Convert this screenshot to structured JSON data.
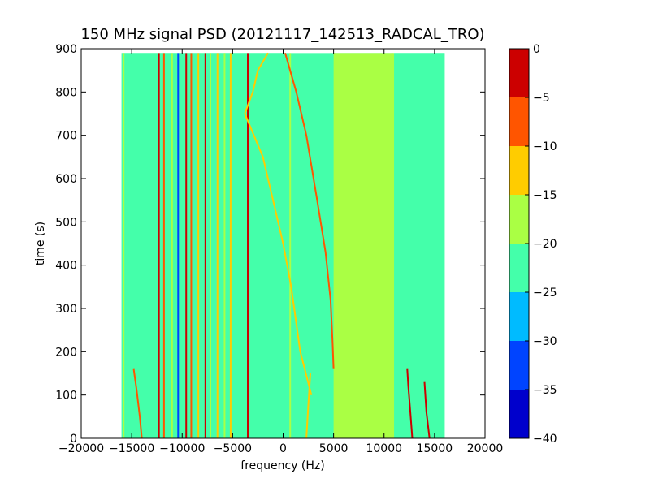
{
  "chart_data": {
    "type": "heatmap",
    "title": "150 MHz signal PSD (20121117_142513_RADCAL_TRO)",
    "xlabel": "frequency (Hz)",
    "ylabel": "time (s)",
    "xlim": [
      -20000,
      20000
    ],
    "ylim": [
      0,
      900
    ],
    "data_extent": {
      "x": [
        -16000,
        16000
      ],
      "y": [
        0,
        890
      ]
    },
    "xticks": [
      -20000,
      -15000,
      -10000,
      -5000,
      0,
      5000,
      10000,
      15000,
      20000
    ],
    "xtick_labels": [
      "−20000",
      "−15000",
      "−10000",
      "−5000",
      "0",
      "5000",
      "10000",
      "15000",
      "20000"
    ],
    "yticks": [
      0,
      100,
      200,
      300,
      400,
      500,
      600,
      700,
      800,
      900
    ],
    "ytick_labels": [
      "0",
      "100",
      "200",
      "300",
      "400",
      "500",
      "600",
      "700",
      "800",
      "900"
    ],
    "colorbar": {
      "levels": [
        -40,
        -35,
        -30,
        -25,
        -20,
        -15,
        -10,
        -5,
        0
      ],
      "tick_labels": [
        "−40",
        "−35",
        "−30",
        "−25",
        "−20",
        "−15",
        "−10",
        "−5",
        "0"
      ],
      "colors": [
        "#0000cc",
        "#0044ff",
        "#00bbff",
        "#44ffaa",
        "#aaff44",
        "#ffcc00",
        "#ff5500",
        "#cc0000"
      ]
    },
    "background_level": -22.5,
    "regions": [
      {
        "x": [
          -16000,
          0
        ],
        "y": [
          0,
          890
        ],
        "level": -22.5
      },
      {
        "x": [
          5000,
          11000
        ],
        "y": [
          0,
          890
        ],
        "level": -17.5
      },
      {
        "x": [
          11000,
          16000
        ],
        "y": [
          0,
          890
        ],
        "level": -20
      }
    ],
    "vertical_lines": [
      {
        "x": -15800,
        "level": -17.5
      },
      {
        "x": -12300,
        "level": -2.5
      },
      {
        "x": -11800,
        "level": -7.5
      },
      {
        "x": -11000,
        "level": -17.5
      },
      {
        "x": -10400,
        "level": -32.5
      },
      {
        "x": -9600,
        "level": -2.5
      },
      {
        "x": -9100,
        "level": -7.5
      },
      {
        "x": -8400,
        "level": -12.5
      },
      {
        "x": -7700,
        "level": -2.5
      },
      {
        "x": -7200,
        "level": -17.5
      },
      {
        "x": -6500,
        "level": -12.5
      },
      {
        "x": -5800,
        "level": -17.5
      },
      {
        "x": -5200,
        "level": -12.5
      },
      {
        "x": -3500,
        "level": -2.5
      },
      {
        "x": 700,
        "level": -17.5
      },
      {
        "x": 5200,
        "level": -17.5
      },
      {
        "x": 10800,
        "level": -17.5
      }
    ],
    "tracks": [
      {
        "name": "",
        "level": -12.5,
        "x": [
          -1500,
          -2500,
          -3000,
          -3800,
          -2000,
          -1000,
          0,
          800,
          1700,
          2800
        ],
        "y": [
          890,
          850,
          800,
          750,
          650,
          550,
          450,
          350,
          200,
          100
        ]
      },
      {
        "name": "",
        "level": -7.5,
        "x": [
          200,
          1300,
          2300,
          3300,
          4200,
          4700,
          4900,
          5000
        ],
        "y": [
          890,
          800,
          700,
          560,
          430,
          320,
          220,
          160
        ]
      },
      {
        "name": "",
        "level": -7.5,
        "x": [
          -14000,
          -14200,
          -14500,
          -14800
        ],
        "y": [
          0,
          50,
          110,
          160
        ]
      },
      {
        "name": "",
        "level": -12.5,
        "x": [
          2300,
          2500,
          2700
        ],
        "y": [
          0,
          80,
          150
        ]
      },
      {
        "name": "",
        "level": -2.5,
        "x": [
          12800,
          12600,
          12400,
          12300
        ],
        "y": [
          0,
          60,
          120,
          160
        ]
      },
      {
        "name": "",
        "level": -2.5,
        "x": [
          14500,
          14200,
          14000
        ],
        "y": [
          0,
          60,
          130
        ]
      }
    ]
  }
}
